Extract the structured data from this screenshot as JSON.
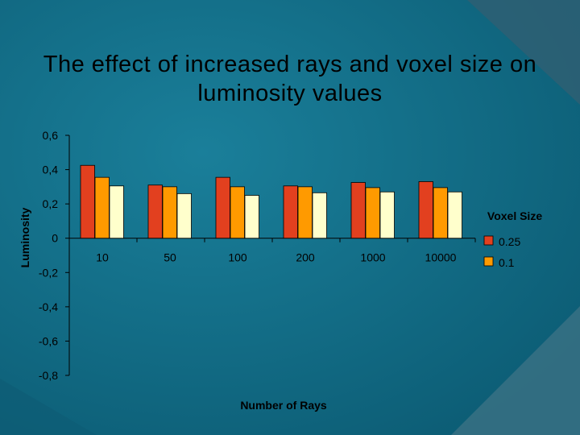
{
  "colors": {
    "background": "#0e6882",
    "background_light": "#2b8aa3",
    "corner_dark": "#0a3f55",
    "series_1": "#e2401f",
    "series_2": "#ff9a00",
    "series_3": "#ffffcc"
  },
  "chart_data": {
    "type": "bar",
    "title": "The effect of increased rays and voxel size on luminosity values",
    "xlabel": "Number of Rays",
    "ylabel": "Luminosity",
    "ylim": [
      -0.8,
      0.6
    ],
    "yticks": [
      "0,6",
      "0,4",
      "0,2",
      "0",
      "-0,2",
      "-0,4",
      "-0,6",
      "-0,8"
    ],
    "ytick_values": [
      0.6,
      0.4,
      0.2,
      0,
      -0.2,
      -0.4,
      -0.6,
      -0.8
    ],
    "categories": [
      "10",
      "50",
      "100",
      "200",
      "1000",
      "10000"
    ],
    "legend_title": "Voxel Size",
    "legend_position": "right",
    "series": [
      {
        "name": "0.25",
        "values": [
          0.425,
          0.31,
          0.355,
          0.305,
          0.325,
          0.33
        ]
      },
      {
        "name": "0.1",
        "values": [
          0.355,
          0.3,
          0.3,
          0.3,
          0.295,
          0.295
        ]
      },
      {
        "name": "",
        "values": [
          0.305,
          0.26,
          0.25,
          0.265,
          0.27,
          0.27
        ]
      }
    ]
  }
}
